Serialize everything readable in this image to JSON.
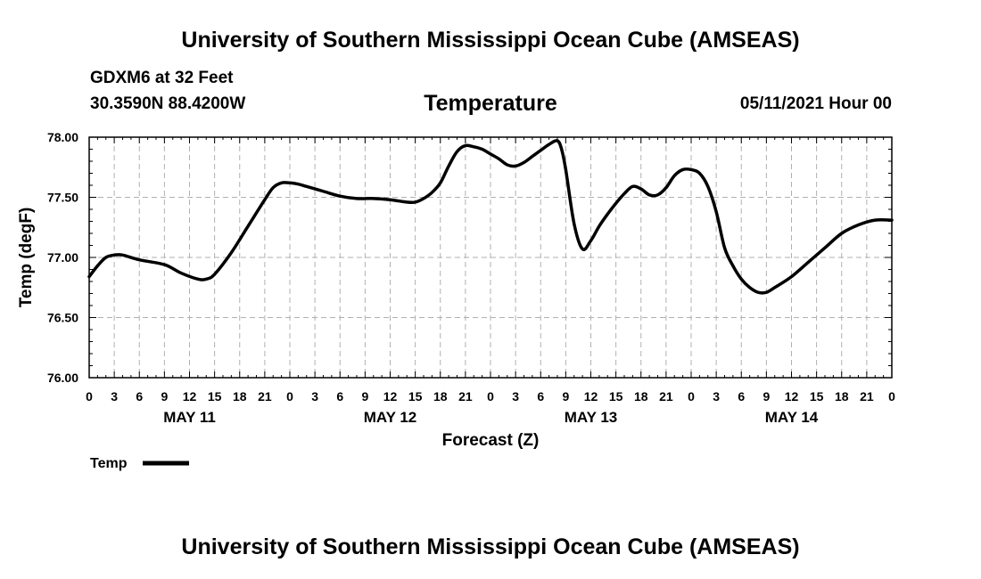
{
  "header": {
    "title": "University of Southern Mississippi Ocean Cube (AMSEAS)",
    "station": "GDXM6 at 32 Feet",
    "coords": "30.3590N  88.4200W",
    "datetime": "05/11/2021 Hour 00"
  },
  "footer": {
    "title": "University of Southern Mississippi Ocean Cube (AMSEAS)"
  },
  "legend": {
    "label": "Temp"
  },
  "colors": {
    "line": "#000000",
    "grid": "#b0b0b0"
  },
  "chart_data": {
    "type": "line",
    "title": "Temperature",
    "xlabel": "Forecast (Z)",
    "ylabel": "Temp (degF)",
    "ylim": [
      76.0,
      78.0
    ],
    "xlim": [
      0,
      96
    ],
    "yticks": [
      "76.00",
      "76.50",
      "77.00",
      "77.50",
      "78.00"
    ],
    "ytick_values": [
      76.0,
      76.5,
      77.0,
      77.5,
      78.0
    ],
    "xtick_hours": [
      0,
      3,
      6,
      9,
      12,
      15,
      18,
      21,
      24,
      27,
      30,
      33,
      36,
      39,
      42,
      45,
      48,
      51,
      54,
      57,
      60,
      63,
      66,
      69,
      72,
      75,
      78,
      81,
      84,
      87,
      90,
      93,
      96
    ],
    "xtick_labels": [
      "0",
      "3",
      "6",
      "9",
      "12",
      "15",
      "18",
      "21",
      "0",
      "3",
      "6",
      "9",
      "12",
      "15",
      "18",
      "21",
      "0",
      "3",
      "6",
      "9",
      "12",
      "15",
      "18",
      "21",
      "0",
      "3",
      "6",
      "9",
      "12",
      "15",
      "18",
      "21",
      "0"
    ],
    "day_labels": [
      {
        "label": "MAY 11",
        "hour": 12
      },
      {
        "label": "MAY 12",
        "hour": 36
      },
      {
        "label": "MAY 13",
        "hour": 60
      },
      {
        "label": "MAY 14",
        "hour": 84
      }
    ],
    "grid": true,
    "series": [
      {
        "name": "Temp",
        "x": [
          0,
          1,
          2,
          3,
          4,
          6,
          9,
          11,
          13,
          14,
          15,
          17,
          19,
          21,
          22,
          23,
          24,
          25,
          26,
          28,
          30,
          32,
          34,
          36,
          38,
          39,
          40,
          41,
          42,
          43,
          44,
          45,
          46,
          47,
          48,
          49,
          50,
          51,
          52,
          53,
          54,
          55,
          56,
          56.5,
          57,
          58,
          59,
          60,
          61,
          62,
          63,
          64,
          65,
          66,
          67,
          68,
          69,
          70,
          71,
          72,
          73,
          74,
          75,
          76,
          77,
          78,
          79,
          80,
          81,
          82,
          84,
          86,
          88,
          90,
          92,
          94,
          96
        ],
        "y": [
          76.84,
          76.93,
          77.0,
          77.02,
          77.02,
          76.98,
          76.94,
          76.87,
          76.82,
          76.82,
          76.86,
          77.04,
          77.26,
          77.48,
          77.58,
          77.62,
          77.62,
          77.61,
          77.59,
          77.55,
          77.51,
          77.49,
          77.49,
          77.48,
          77.46,
          77.46,
          77.49,
          77.54,
          77.62,
          77.76,
          77.88,
          77.93,
          77.92,
          77.9,
          77.86,
          77.82,
          77.77,
          77.76,
          77.79,
          77.84,
          77.89,
          77.94,
          77.97,
          77.9,
          77.73,
          77.28,
          77.07,
          77.14,
          77.26,
          77.36,
          77.45,
          77.53,
          77.59,
          77.57,
          77.52,
          77.52,
          77.58,
          77.68,
          77.73,
          77.73,
          77.7,
          77.59,
          77.38,
          77.08,
          76.93,
          76.82,
          76.75,
          76.71,
          76.71,
          76.75,
          76.84,
          76.96,
          77.08,
          77.2,
          77.27,
          77.31,
          77.31
        ]
      }
    ]
  }
}
